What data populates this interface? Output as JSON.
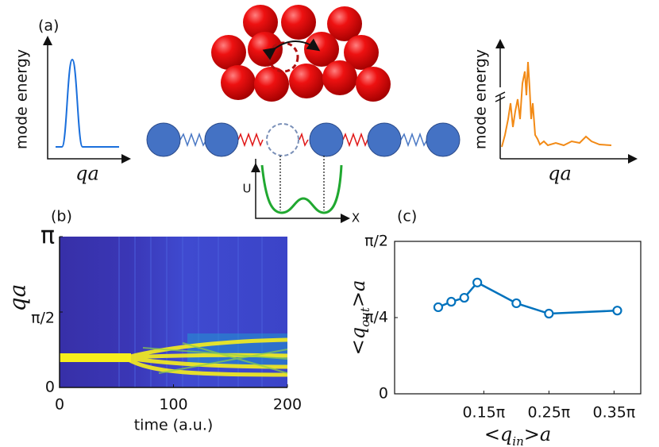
{
  "diagram": {
    "panel_label": "(a)",
    "left_y_label": "mode energy",
    "left_x_label": "qa",
    "right_y_label": "mode energy",
    "right_x_label": "qa",
    "potential_y_label": "U",
    "potential_x_label": "X"
  },
  "chart_data": [
    {
      "type": "heatmap",
      "panel_label": "(b)",
      "x_label": "time (a.u.)",
      "y_label": "qa",
      "xlim": [
        0,
        200
      ],
      "xticks": [
        0,
        100,
        200
      ],
      "ylim": [
        0,
        1
      ],
      "yticks": [
        0,
        {
          "value": 0.5,
          "label": "π/2"
        },
        {
          "value": 1,
          "label": "π"
        }
      ]
    },
    {
      "type": "line",
      "panel_label": "(c)",
      "x_label": {
        "pre": "<q",
        "sub": "in",
        "post": ">a"
      },
      "y_label": {
        "pre": "<q",
        "sub": "out",
        "post": ">a"
      },
      "color": "#0072bd",
      "x": [
        0.08,
        0.1,
        0.12,
        0.14,
        0.2,
        0.25,
        0.355
      ],
      "values": [
        0.284,
        0.302,
        0.315,
        0.365,
        0.297,
        0.263,
        0.273
      ],
      "xlim": [
        0.013,
        0.391
      ],
      "xticks": [
        {
          "value": 0.15,
          "label": "0.15π"
        },
        {
          "value": 0.25,
          "label": "0.25π"
        },
        {
          "value": 0.35,
          "label": "0.35π"
        }
      ],
      "ylim": [
        0,
        0.5
      ],
      "yticks": [
        0,
        {
          "value": 0.25,
          "label": "π/4"
        },
        {
          "value": 0.5,
          "label": "π/2"
        }
      ]
    }
  ]
}
